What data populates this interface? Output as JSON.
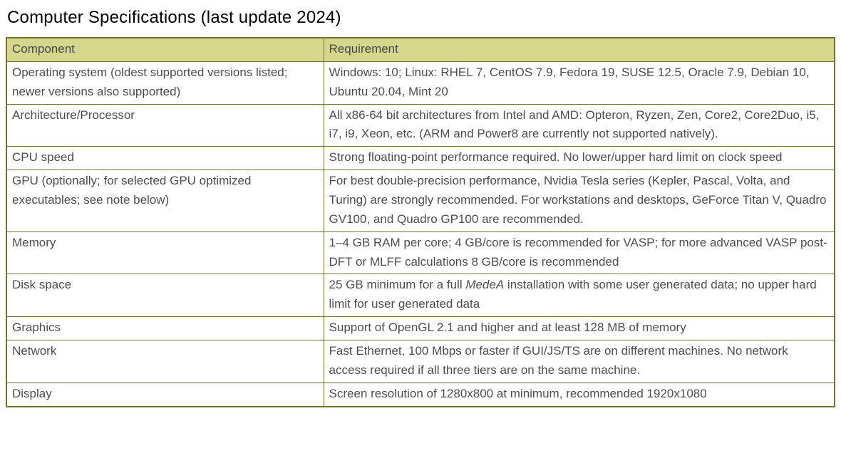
{
  "page": {
    "title": "Computer Specifications (last update 2024)"
  },
  "colors": {
    "header_background": "#d5d88c",
    "table_border": "#70742f",
    "title_text": "#000000",
    "cell_text": "#4d4d4d"
  },
  "table": {
    "columns": [
      "Component",
      "Requirement"
    ],
    "rows": [
      {
        "component": "Operating system (oldest supported versions listed; newer versions also supported)",
        "requirement": "Windows: 10; Linux: RHEL 7, CentOS 7.9, Fedora 19, SUSE 12.5, Oracle 7.9, Debian 10, Ubuntu 20.04, Mint 20"
      },
      {
        "component": "Architecture/Processor",
        "requirement": "All x86-64 bit architectures from Intel and AMD: Opteron, Ryzen, Zen, Core2, Core2Duo, i5, i7, i9, Xeon, etc. (ARM and Power8 are currently not supported natively)."
      },
      {
        "component": "CPU speed",
        "requirement": "Strong floating-point performance required. No lower/upper hard limit on clock speed"
      },
      {
        "component": "GPU (optionally; for selected GPU optimized executables; see note below)",
        "requirement": "For best double-precision performance, Nvidia Tesla series (Kepler, Pascal, Volta, and Turing) are strongly recommended. For workstations and desktops, GeForce Titan V, Quadro GV100, and Quadro GP100 are recommended."
      },
      {
        "component": "Memory",
        "requirement": "1–4 GB RAM per core; 4 GB/core is recommended for VASP; for more advanced VASP post-DFT or MLFF calculations 8 GB/core is recommended"
      },
      {
        "component": "Disk space",
        "requirement_parts": [
          "25 GB minimum for a full ",
          "MedeA",
          " installation with some user generated data; no upper hard limit for user generated data"
        ]
      },
      {
        "component": "Graphics",
        "requirement": "Support of OpenGL 2.1 and higher and at least 128 MB of memory"
      },
      {
        "component": "Network",
        "requirement": "Fast Ethernet, 100 Mbps or faster if GUI/JS/TS are on different machines. No network access required if all three tiers are on the same machine."
      },
      {
        "component": "Display",
        "requirement": "Screen resolution of 1280x800 at minimum, recommended 1920x1080"
      }
    ]
  }
}
